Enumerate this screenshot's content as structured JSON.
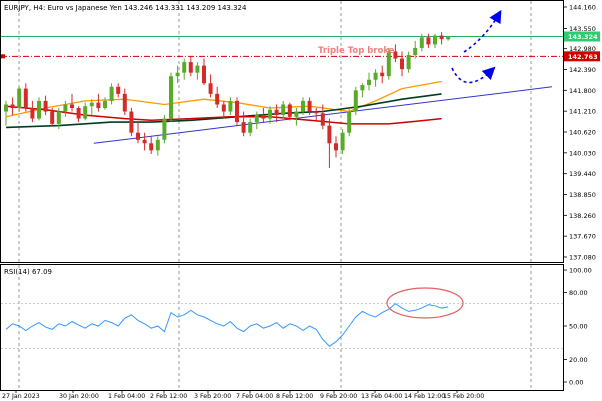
{
  "chart_data": [
    {
      "type": "candlestick",
      "symbol_caption": "EURJPY, H4:  Euro vs Japanese Yen  143.246 143.331 143.209 143.324",
      "annotation": "Triple Top broke",
      "price_tags": {
        "current": "143.324",
        "level": "142.763"
      },
      "y_ticks": [
        "144.160",
        "143.550",
        "142.980",
        "142.390",
        "141.800",
        "141.210",
        "140.620",
        "140.030",
        "139.440",
        "138.850",
        "138.260",
        "137.670",
        "137.080"
      ],
      "ylim": [
        137.08,
        144.16
      ],
      "x_ticks": [
        "27 Jan 2023",
        "30 Jan 20:00",
        "1 Feb 04:00",
        "2 Feb 12:00",
        "3 Feb 20:00",
        "7 Feb 04:00",
        "8 Feb 12:00",
        "9 Feb 20:00",
        "13 Feb 04:00",
        "14 Feb 12:00",
        "15 Feb 20:00"
      ],
      "horizontal_levels": [
        {
          "value": 143.324,
          "color": "#27ae60",
          "style": "solid"
        },
        {
          "value": 142.763,
          "color": "#cc0000",
          "style": "dash-dot"
        }
      ],
      "candles": [
        [
          141.2,
          141.5,
          140.8,
          141.4
        ],
        [
          141.4,
          141.6,
          141.1,
          141.3
        ],
        [
          141.3,
          141.9,
          141.2,
          141.85
        ],
        [
          141.85,
          142.0,
          141.2,
          141.3
        ],
        [
          141.3,
          141.5,
          140.9,
          141.0
        ],
        [
          141.0,
          141.6,
          140.95,
          141.5
        ],
        [
          141.5,
          141.65,
          141.1,
          141.2
        ],
        [
          141.2,
          141.3,
          140.8,
          140.85
        ],
        [
          140.85,
          141.3,
          140.7,
          141.2
        ],
        [
          141.2,
          141.5,
          141.05,
          141.4
        ],
        [
          141.4,
          141.7,
          141.2,
          141.3
        ],
        [
          141.3,
          141.35,
          140.9,
          141.0
        ],
        [
          141.0,
          141.45,
          140.95,
          141.35
        ],
        [
          141.35,
          141.55,
          141.1,
          141.45
        ],
        [
          141.45,
          141.7,
          141.2,
          141.3
        ],
        [
          141.3,
          141.6,
          141.25,
          141.5
        ],
        [
          141.5,
          142.0,
          141.4,
          141.9
        ],
        [
          141.9,
          142.0,
          141.6,
          141.7
        ],
        [
          141.7,
          141.85,
          141.1,
          141.2
        ],
        [
          141.2,
          141.3,
          140.5,
          140.6
        ],
        [
          140.6,
          140.9,
          140.3,
          140.4
        ],
        [
          140.4,
          140.6,
          140.1,
          140.3
        ],
        [
          140.3,
          140.5,
          140.0,
          140.1
        ],
        [
          140.1,
          140.5,
          139.95,
          140.4
        ],
        [
          140.4,
          141.1,
          140.3,
          141.0
        ],
        [
          141.0,
          142.3,
          140.9,
          142.2
        ],
        [
          142.2,
          142.5,
          142.0,
          142.3
        ],
        [
          142.3,
          142.7,
          142.1,
          142.6
        ],
        [
          142.6,
          142.75,
          142.2,
          142.3
        ],
        [
          142.3,
          142.6,
          142.1,
          142.5
        ],
        [
          142.5,
          142.7,
          141.95,
          142.0
        ],
        [
          142.0,
          142.25,
          141.6,
          141.7
        ],
        [
          141.7,
          141.9,
          141.3,
          141.4
        ],
        [
          141.4,
          141.5,
          141.0,
          141.2
        ],
        [
          141.2,
          141.6,
          141.1,
          141.5
        ],
        [
          141.5,
          141.6,
          140.8,
          140.9
        ],
        [
          140.9,
          141.2,
          140.5,
          140.6
        ],
        [
          140.6,
          141.0,
          140.5,
          140.9
        ],
        [
          140.9,
          141.2,
          140.7,
          141.1
        ],
        [
          141.1,
          141.3,
          140.9,
          141.0
        ],
        [
          141.0,
          141.35,
          140.85,
          141.25
        ],
        [
          141.25,
          141.4,
          140.9,
          141.1
        ],
        [
          141.1,
          141.5,
          141.0,
          141.4
        ],
        [
          141.4,
          141.45,
          140.95,
          141.05
        ],
        [
          141.05,
          141.3,
          140.8,
          141.2
        ],
        [
          141.2,
          141.6,
          141.1,
          141.5
        ],
        [
          141.5,
          141.6,
          141.1,
          141.2
        ],
        [
          141.2,
          141.3,
          140.95,
          141.15
        ],
        [
          141.15,
          141.4,
          140.7,
          140.8
        ],
        [
          140.8,
          141.0,
          139.6,
          140.3
        ],
        [
          140.3,
          140.5,
          139.9,
          140.1
        ],
        [
          140.1,
          140.7,
          140.0,
          140.6
        ],
        [
          140.6,
          141.3,
          140.5,
          141.2
        ],
        [
          141.2,
          141.9,
          141.1,
          141.8
        ],
        [
          141.8,
          142.0,
          141.6,
          141.95
        ],
        [
          141.95,
          142.3,
          141.8,
          142.1
        ],
        [
          142.1,
          142.4,
          141.9,
          142.3
        ],
        [
          142.3,
          142.5,
          142.0,
          142.2
        ],
        [
          142.2,
          143.0,
          142.1,
          142.9
        ],
        [
          142.9,
          143.1,
          142.6,
          142.7
        ],
        [
          142.7,
          142.9,
          142.2,
          142.4
        ],
        [
          142.4,
          142.9,
          142.3,
          142.8
        ],
        [
          142.8,
          143.2,
          142.7,
          143.0
        ],
        [
          143.0,
          143.4,
          142.9,
          143.3
        ],
        [
          143.3,
          143.4,
          143.0,
          143.1
        ],
        [
          143.1,
          143.4,
          143.0,
          143.35
        ],
        [
          143.35,
          143.45,
          143.1,
          143.25
        ],
        [
          143.246,
          143.331,
          143.209,
          143.324
        ]
      ],
      "ma_series": [
        {
          "color": "#ff9900",
          "width": 1.3,
          "values": [
            [
              0,
              141.05
            ],
            [
              6,
              141.3
            ],
            [
              12,
              141.5
            ],
            [
              18,
              141.55
            ],
            [
              24,
              141.4
            ],
            [
              30,
              141.55
            ],
            [
              35,
              141.45
            ],
            [
              40,
              141.3
            ],
            [
              46,
              141.35
            ],
            [
              52,
              141.2
            ],
            [
              56,
              141.5
            ],
            [
              60,
              141.85
            ],
            [
              66,
              142.05
            ]
          ]
        },
        {
          "color": "#003d1f",
          "width": 1.6,
          "values": [
            [
              0,
              140.75
            ],
            [
              8,
              140.8
            ],
            [
              16,
              140.9
            ],
            [
              22,
              140.9
            ],
            [
              28,
              140.95
            ],
            [
              35,
              141.05
            ],
            [
              42,
              141.15
            ],
            [
              48,
              141.2
            ],
            [
              54,
              141.35
            ],
            [
              60,
              141.55
            ],
            [
              66,
              141.7
            ]
          ]
        },
        {
          "color": "#cc0000",
          "width": 1.5,
          "values": [
            [
              0,
              141.35
            ],
            [
              6,
              141.25
            ],
            [
              12,
              141.1
            ],
            [
              18,
              141.0
            ],
            [
              22,
              140.95
            ],
            [
              28,
              141.0
            ],
            [
              34,
              141.05
            ],
            [
              40,
              141.05
            ],
            [
              46,
              140.95
            ],
            [
              52,
              140.85
            ],
            [
              58,
              140.85
            ],
            [
              62,
              140.92
            ],
            [
              66,
              141.0
            ]
          ]
        }
      ],
      "trendlines": [
        {
          "from": [
            8,
            140.3
          ],
          "to": [
            73,
            141.9
          ],
          "color": "#3333cc"
        }
      ]
    },
    {
      "type": "line",
      "title": "RSI(14) 67.09",
      "ylim": [
        0,
        100
      ],
      "y_ticks": [
        "100.00",
        "80.00",
        "50.00",
        "20.00",
        "0.00"
      ],
      "levels": [
        30,
        70
      ],
      "values": [
        47,
        52,
        50,
        46,
        50,
        53,
        49,
        47,
        52,
        50,
        54,
        51,
        48,
        52,
        50,
        55,
        53,
        50,
        57,
        60,
        55,
        52,
        48,
        50,
        45,
        62,
        58,
        60,
        64,
        60,
        58,
        55,
        52,
        50,
        54,
        48,
        45,
        50,
        52,
        48,
        50,
        53,
        48,
        52,
        50,
        46,
        50,
        47,
        38,
        32,
        36,
        42,
        50,
        58,
        63,
        60,
        58,
        62,
        65,
        70,
        66,
        63,
        64,
        66,
        69,
        68,
        66,
        67.09
      ]
    }
  ]
}
